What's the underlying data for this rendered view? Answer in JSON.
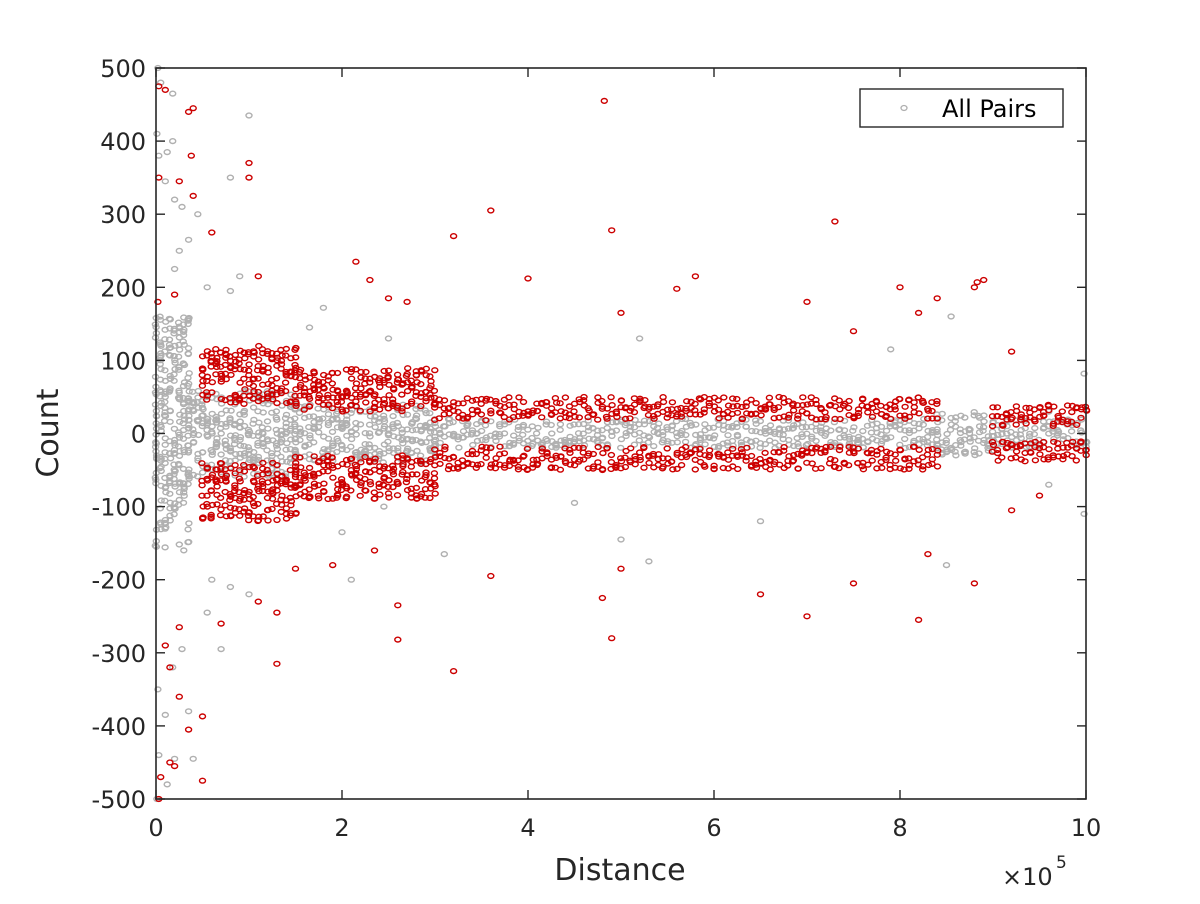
{
  "chart_data": {
    "type": "scatter",
    "title": "",
    "xlabel": "Distance",
    "ylabel": "Count",
    "xlim": [
      0,
      1000000
    ],
    "ylim": [
      -500,
      500
    ],
    "x_ticks": [
      0,
      200000,
      400000,
      600000,
      800000,
      1000000
    ],
    "x_tick_labels": [
      "0",
      "2",
      "4",
      "6",
      "8",
      "10"
    ],
    "x_exponent_base": "×10",
    "x_exponent_power": "5",
    "y_ticks": [
      -500,
      -400,
      -300,
      -200,
      -100,
      0,
      100,
      200,
      300,
      400,
      500
    ],
    "y_tick_labels": [
      "-500",
      "-400",
      "-300",
      "-200",
      "-100",
      "0",
      "100",
      "200",
      "300",
      "400",
      "500"
    ],
    "grid": false,
    "legend": {
      "position": "top-right",
      "entries": [
        "All Pairs"
      ]
    },
    "colors": {
      "gray": "#b0b0b0",
      "red": "#cc0000",
      "axis": "#262626"
    },
    "series": [
      {
        "name": "All Pairs",
        "color": "#b0b0b0",
        "marker": "open-circle",
        "dense_band": [
          {
            "x": [
              0,
              35000
            ],
            "y": [
              -160,
              160
            ]
          },
          {
            "x": [
              35000,
              150000
            ],
            "y": [
              -60,
              60
            ]
          },
          {
            "x": [
              150000,
              300000
            ],
            "y": [
              -40,
              40
            ]
          },
          {
            "x": [
              300000,
              840000
            ],
            "y": [
              -20,
              20
            ]
          },
          {
            "x": [
              840000,
              900000
            ],
            "y": [
              -30,
              30
            ]
          },
          {
            "x": [
              900000,
              1000000
            ],
            "y": [
              -20,
              20
            ]
          }
        ],
        "points": [
          {
            "x": 2000,
            "y": 500
          },
          {
            "x": 5000,
            "y": 480
          },
          {
            "x": 18000,
            "y": 465
          },
          {
            "x": 1000,
            "y": 410
          },
          {
            "x": 3000,
            "y": 380
          },
          {
            "x": 12000,
            "y": 385
          },
          {
            "x": 18000,
            "y": 400
          },
          {
            "x": 10000,
            "y": 345
          },
          {
            "x": 20000,
            "y": 320
          },
          {
            "x": 28000,
            "y": 310
          },
          {
            "x": 35000,
            "y": 265
          },
          {
            "x": 20000,
            "y": 225
          },
          {
            "x": 25000,
            "y": 250
          },
          {
            "x": 45000,
            "y": 300
          },
          {
            "x": 100000,
            "y": 435
          },
          {
            "x": 80000,
            "y": 350
          },
          {
            "x": 90000,
            "y": 215
          },
          {
            "x": 55000,
            "y": 200
          },
          {
            "x": 80000,
            "y": 195
          },
          {
            "x": 165000,
            "y": 145
          },
          {
            "x": 180000,
            "y": 172
          },
          {
            "x": 250000,
            "y": 130
          },
          {
            "x": 520000,
            "y": 130
          },
          {
            "x": 790000,
            "y": 115
          },
          {
            "x": 855000,
            "y": 160
          },
          {
            "x": 960000,
            "y": 30
          },
          {
            "x": 998000,
            "y": 82
          },
          {
            "x": 1000,
            "y": -500
          },
          {
            "x": 3000,
            "y": -440
          },
          {
            "x": 12000,
            "y": -480
          },
          {
            "x": 20000,
            "y": -445
          },
          {
            "x": 35000,
            "y": -380
          },
          {
            "x": 40000,
            "y": -445
          },
          {
            "x": 10000,
            "y": -385
          },
          {
            "x": 2000,
            "y": -350
          },
          {
            "x": 18000,
            "y": -320
          },
          {
            "x": 28000,
            "y": -295
          },
          {
            "x": 70000,
            "y": -295
          },
          {
            "x": 55000,
            "y": -245
          },
          {
            "x": 100000,
            "y": -220
          },
          {
            "x": 60000,
            "y": -200
          },
          {
            "x": 80000,
            "y": -210
          },
          {
            "x": 210000,
            "y": -200
          },
          {
            "x": 200000,
            "y": -135
          },
          {
            "x": 310000,
            "y": -165
          },
          {
            "x": 245000,
            "y": -100
          },
          {
            "x": 500000,
            "y": -145
          },
          {
            "x": 530000,
            "y": -175
          },
          {
            "x": 650000,
            "y": -120
          },
          {
            "x": 850000,
            "y": -180
          },
          {
            "x": 960000,
            "y": -70
          },
          {
            "x": 998000,
            "y": -110
          },
          {
            "x": 450000,
            "y": -95
          }
        ]
      },
      {
        "name": "",
        "color": "#cc0000",
        "marker": "open-circle",
        "dense_band": [
          {
            "x": [
              50000,
              150000
            ],
            "y": [
              40,
              120
            ]
          },
          {
            "x": [
              50000,
              150000
            ],
            "y": [
              -120,
              -40
            ]
          },
          {
            "x": [
              150000,
              300000
            ],
            "y": [
              30,
              90
            ]
          },
          {
            "x": [
              150000,
              300000
            ],
            "y": [
              -90,
              -30
            ]
          },
          {
            "x": [
              300000,
              840000
            ],
            "y": [
              18,
              50
            ]
          },
          {
            "x": [
              300000,
              840000
            ],
            "y": [
              -50,
              -18
            ]
          },
          {
            "x": [
              900000,
              1000000
            ],
            "y": [
              10,
              40
            ]
          },
          {
            "x": [
              900000,
              1000000
            ],
            "y": [
              -40,
              -10
            ]
          }
        ],
        "points": [
          {
            "x": 3000,
            "y": 475
          },
          {
            "x": 10000,
            "y": 470
          },
          {
            "x": 35000,
            "y": 440
          },
          {
            "x": 40000,
            "y": 445
          },
          {
            "x": 38000,
            "y": 380
          },
          {
            "x": 25000,
            "y": 345
          },
          {
            "x": 40000,
            "y": 325
          },
          {
            "x": 60000,
            "y": 275
          },
          {
            "x": 100000,
            "y": 370
          },
          {
            "x": 100000,
            "y": 350
          },
          {
            "x": 3000,
            "y": 350
          },
          {
            "x": 110000,
            "y": 215
          },
          {
            "x": 2000,
            "y": 180
          },
          {
            "x": 20000,
            "y": 190
          },
          {
            "x": 215000,
            "y": 235
          },
          {
            "x": 230000,
            "y": 210
          },
          {
            "x": 250000,
            "y": 185
          },
          {
            "x": 270000,
            "y": 180
          },
          {
            "x": 320000,
            "y": 270
          },
          {
            "x": 360000,
            "y": 305
          },
          {
            "x": 400000,
            "y": 212
          },
          {
            "x": 482000,
            "y": 455
          },
          {
            "x": 490000,
            "y": 278
          },
          {
            "x": 560000,
            "y": 198
          },
          {
            "x": 580000,
            "y": 215
          },
          {
            "x": 730000,
            "y": 290
          },
          {
            "x": 700000,
            "y": 180
          },
          {
            "x": 800000,
            "y": 200
          },
          {
            "x": 820000,
            "y": 165
          },
          {
            "x": 840000,
            "y": 185
          },
          {
            "x": 880000,
            "y": 200
          },
          {
            "x": 883000,
            "y": 207
          },
          {
            "x": 890000,
            "y": 210
          },
          {
            "x": 500000,
            "y": 165
          },
          {
            "x": 750000,
            "y": 140
          },
          {
            "x": 920000,
            "y": 112
          },
          {
            "x": 3000,
            "y": -500
          },
          {
            "x": 5000,
            "y": -470
          },
          {
            "x": 15000,
            "y": -450
          },
          {
            "x": 20000,
            "y": -455
          },
          {
            "x": 50000,
            "y": -475
          },
          {
            "x": 50000,
            "y": -387
          },
          {
            "x": 25000,
            "y": -360
          },
          {
            "x": 35000,
            "y": -405
          },
          {
            "x": 15000,
            "y": -320
          },
          {
            "x": 25000,
            "y": -265
          },
          {
            "x": 10000,
            "y": -290
          },
          {
            "x": 130000,
            "y": -315
          },
          {
            "x": 110000,
            "y": -230
          },
          {
            "x": 130000,
            "y": -245
          },
          {
            "x": 70000,
            "y": -260
          },
          {
            "x": 150000,
            "y": -185
          },
          {
            "x": 190000,
            "y": -180
          },
          {
            "x": 235000,
            "y": -160
          },
          {
            "x": 260000,
            "y": -235
          },
          {
            "x": 260000,
            "y": -282
          },
          {
            "x": 320000,
            "y": -325
          },
          {
            "x": 360000,
            "y": -195
          },
          {
            "x": 480000,
            "y": -225
          },
          {
            "x": 490000,
            "y": -280
          },
          {
            "x": 500000,
            "y": -185
          },
          {
            "x": 650000,
            "y": -220
          },
          {
            "x": 700000,
            "y": -250
          },
          {
            "x": 750000,
            "y": -205
          },
          {
            "x": 820000,
            "y": -255
          },
          {
            "x": 830000,
            "y": -165
          },
          {
            "x": 880000,
            "y": -205
          },
          {
            "x": 920000,
            "y": -105
          },
          {
            "x": 950000,
            "y": -85
          }
        ]
      }
    ]
  }
}
